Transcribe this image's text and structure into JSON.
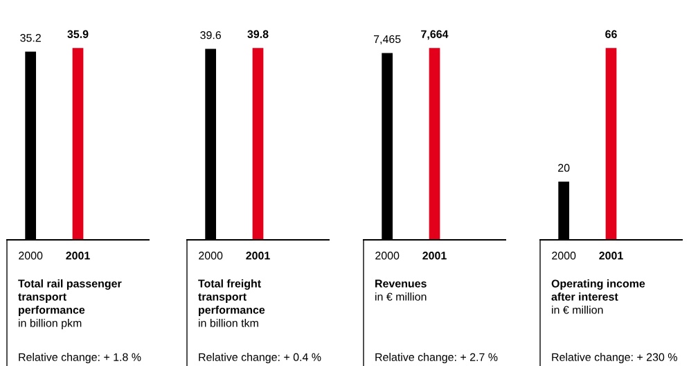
{
  "chart_data": [
    {
      "type": "bar",
      "title": "Total rail passenger transport performance",
      "subtitle": "in billion pkm",
      "categories": [
        "2000",
        "2001"
      ],
      "values": [
        35.2,
        35.9
      ],
      "colors": [
        "#000000",
        "#e2001a"
      ],
      "value_labels": [
        "35.2",
        "35.9"
      ],
      "annotations": [
        "Relative change: + 1.8 %"
      ]
    },
    {
      "type": "bar",
      "title": "Total freight transport performance",
      "subtitle": "in billion tkm",
      "categories": [
        "2000",
        "2001"
      ],
      "values": [
        39.6,
        39.8
      ],
      "colors": [
        "#000000",
        "#e2001a"
      ],
      "value_labels": [
        "39.6",
        "39.8"
      ],
      "annotations": [
        "Relative change: + 0.4 %"
      ]
    },
    {
      "type": "bar",
      "title": "Revenues",
      "subtitle": "in € million",
      "categories": [
        "2000",
        "2001"
      ],
      "values": [
        7465,
        7664
      ],
      "colors": [
        "#000000",
        "#e2001a"
      ],
      "value_labels": [
        "7,465",
        "7,664"
      ],
      "annotations": [
        "Relative change: + 2.7 %"
      ]
    },
    {
      "type": "bar",
      "title": "Operating income after interest",
      "subtitle": "in € million",
      "categories": [
        "2000",
        "2001"
      ],
      "values": [
        20,
        66
      ],
      "colors": [
        "#000000",
        "#e2001a"
      ],
      "value_labels": [
        "20",
        "66"
      ],
      "annotations": [
        "Relative change: + 230 %"
      ]
    }
  ]
}
